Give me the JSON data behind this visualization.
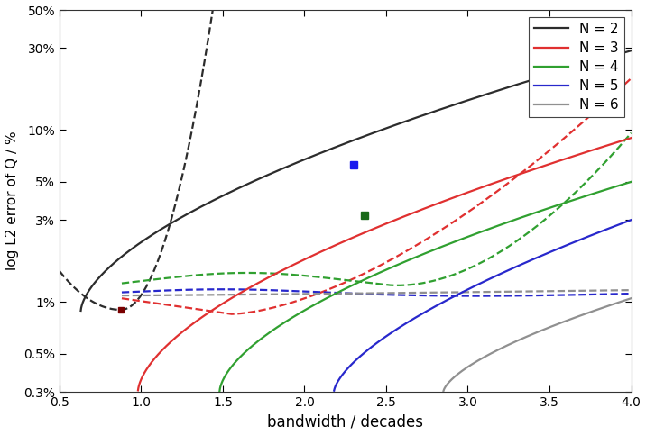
{
  "xlabel": "bandwidth / decades",
  "ylabel": "log L2 error of Q / %",
  "xlim": [
    0.5,
    4.0
  ],
  "colors": [
    "#2c2c2c",
    "#e03030",
    "#30a030",
    "#2828cc",
    "#909090"
  ],
  "legend_labels": [
    "N = 2",
    "N = 3",
    "N = 4",
    "N = 5",
    "N = 6"
  ],
  "yticks": [
    0.3,
    0.5,
    1.0,
    3.0,
    5.0,
    10.0,
    30.0,
    50.0
  ],
  "xticks": [
    0.5,
    1.0,
    1.5,
    2.0,
    2.5,
    3.0,
    3.5,
    4.0
  ],
  "ylim": [
    0.3,
    50.0
  ],
  "marker_blue": [
    2.3,
    6.3
  ],
  "marker_green": [
    2.37,
    3.2
  ],
  "marker_dark": [
    0.875,
    0.9
  ]
}
